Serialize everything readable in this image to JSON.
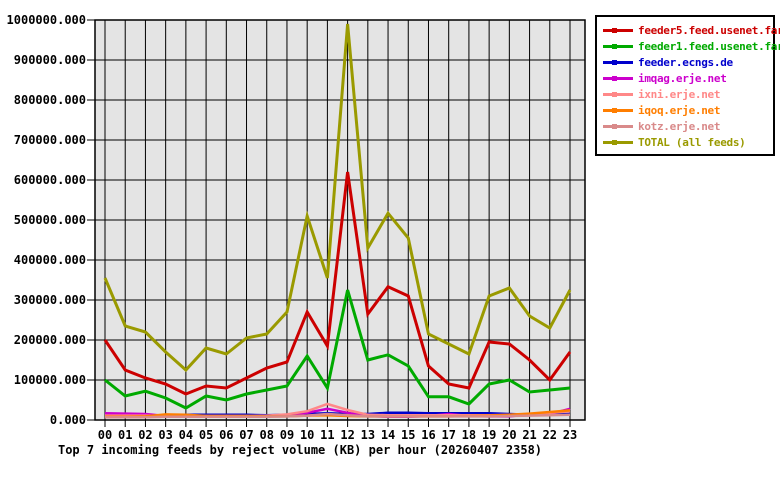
{
  "window": {
    "background": "#ffffff"
  },
  "chart_data": {
    "type": "line",
    "title": "Top 7 incoming feeds by reject volume (KB) per hour (20260407 2358)",
    "x_labels": [
      "00",
      "01",
      "02",
      "03",
      "04",
      "05",
      "06",
      "07",
      "08",
      "09",
      "10",
      "11",
      "12",
      "13",
      "14",
      "15",
      "16",
      "17",
      "18",
      "19",
      "20",
      "21",
      "22",
      "23"
    ],
    "ylim": [
      0,
      1000000
    ],
    "y_tick_step": 100000,
    "y_tick_decimals": 3,
    "grid": true,
    "grid_color": "#000000",
    "plot_background": "#e4e4e4",
    "axis_text_color": "#000000",
    "legend_position": "outside-top-right",
    "legend_border_color": "#000000",
    "series": [
      {
        "name": "feeder5.feed.usenet.farm",
        "color": "#cc0000",
        "values": [
          200000,
          125000,
          105000,
          90000,
          65000,
          85000,
          80000,
          105000,
          130000,
          145000,
          270000,
          185000,
          620000,
          265000,
          333000,
          310000,
          135000,
          90000,
          80000,
          195000,
          190000,
          150000,
          100000,
          170000
        ]
      },
      {
        "name": "feeder1.feed.usenet.farm",
        "color": "#00aa00",
        "values": [
          100000,
          60000,
          72000,
          55000,
          30000,
          60000,
          50000,
          65000,
          75000,
          85000,
          160000,
          80000,
          325000,
          150000,
          163000,
          135000,
          58000,
          58000,
          40000,
          90000,
          100000,
          70000,
          75000,
          80000
        ]
      },
      {
        "name": "feeder.ecngs.de",
        "color": "#0000cc",
        "values": [
          10000,
          10000,
          10000,
          12000,
          13000,
          13000,
          13000,
          13000,
          12000,
          13000,
          15000,
          17000,
          15000,
          15000,
          18000,
          18000,
          17000,
          17000,
          17000,
          17000,
          15000,
          13000,
          14000,
          15000
        ]
      },
      {
        "name": "imqag.erje.net",
        "color": "#cc00cc",
        "values": [
          17000,
          16000,
          15000,
          10000,
          8000,
          8000,
          8000,
          8000,
          9000,
          12000,
          18000,
          28000,
          18000,
          10000,
          8000,
          8000,
          10000,
          15000,
          10000,
          9000,
          9000,
          14000,
          15000,
          28000
        ]
      },
      {
        "name": "ixni.erje.net",
        "color": "#ff8888",
        "values": [
          11000,
          11000,
          11000,
          10000,
          10000,
          10000,
          10000,
          10000,
          11000,
          14000,
          22000,
          40000,
          25000,
          13000,
          12000,
          12000,
          12000,
          12000,
          12000,
          12000,
          13000,
          15000,
          18000,
          22000
        ]
      },
      {
        "name": "iqoq.erje.net",
        "color": "#ff7e00",
        "values": [
          8000,
          8000,
          9000,
          14000,
          13000,
          10000,
          10000,
          10000,
          9000,
          9000,
          11000,
          12000,
          10000,
          9000,
          9000,
          9000,
          9000,
          9000,
          10000,
          11000,
          13000,
          16000,
          20000,
          24000
        ]
      },
      {
        "name": "kotz.erje.net",
        "color": "#d98a8a",
        "values": [
          7000,
          7000,
          7000,
          8000,
          8000,
          8000,
          8000,
          8000,
          8000,
          9000,
          11000,
          15000,
          12000,
          9000,
          9000,
          9000,
          9000,
          9000,
          9000,
          9000,
          10000,
          11000,
          12000,
          13000
        ]
      },
      {
        "name": "TOTAL (all feeds)",
        "color": "#9a9a00",
        "values": [
          355000,
          235000,
          220000,
          170000,
          125000,
          180000,
          165000,
          205000,
          215000,
          270000,
          510000,
          355000,
          990000,
          430000,
          517000,
          455000,
          215000,
          190000,
          165000,
          310000,
          330000,
          260000,
          230000,
          325000
        ]
      }
    ]
  }
}
